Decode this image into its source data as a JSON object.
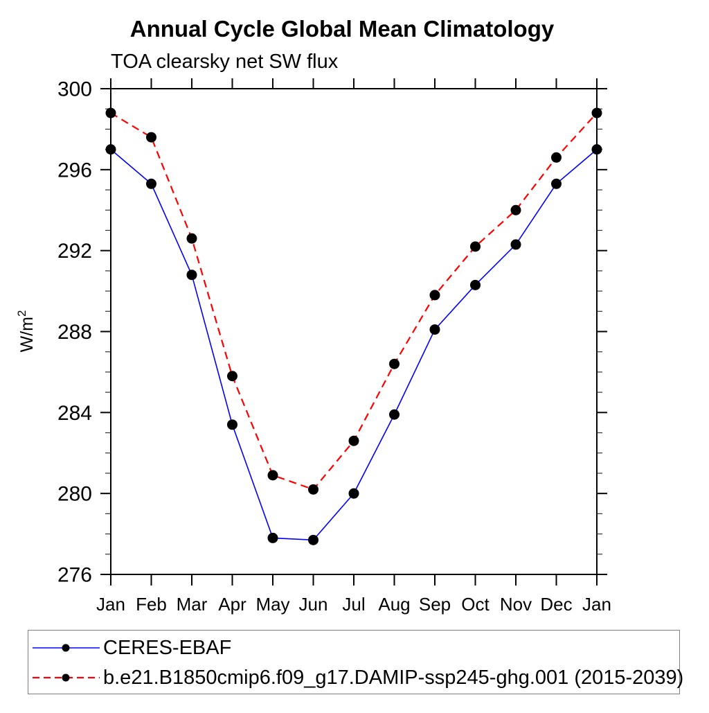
{
  "chart_data": {
    "type": "line",
    "title": "Annual Cycle Global Mean Climatology",
    "subtitle": "TOA clearsky net SW flux",
    "xlabel": "",
    "ylabel_base": "W/m",
    "ylabel_exp": "2",
    "categories": [
      "Jan",
      "Feb",
      "Mar",
      "Apr",
      "May",
      "Jun",
      "Jul",
      "Aug",
      "Sep",
      "Oct",
      "Nov",
      "Dec",
      "Jan"
    ],
    "ylim": [
      276,
      300
    ],
    "ytick_major": [
      300,
      296,
      292,
      288,
      284,
      280,
      276
    ],
    "ytick_minor_step": 1,
    "grid": false,
    "legend_position": "bottom",
    "axis_color": "#000000",
    "series": [
      {
        "name": "CERES-EBAF",
        "color": "#0000ff",
        "line_style": "solid",
        "marker": "circle",
        "marker_color": "#000000",
        "values": [
          297.0,
          295.3,
          290.8,
          283.4,
          277.8,
          277.7,
          280.0,
          283.9,
          288.1,
          290.3,
          292.3,
          295.3,
          297.0
        ]
      },
      {
        "name": "b.e21.B1850cmip6.f09_g17.DAMIP-ssp245-ghg.001 (2015-2039)",
        "color": "#ff0000",
        "line_style": "dashed",
        "marker": "circle",
        "marker_color": "#000000",
        "values": [
          298.8,
          297.6,
          292.6,
          285.8,
          280.9,
          280.2,
          282.6,
          286.4,
          289.8,
          292.2,
          294.0,
          296.6,
          298.8
        ]
      }
    ]
  }
}
